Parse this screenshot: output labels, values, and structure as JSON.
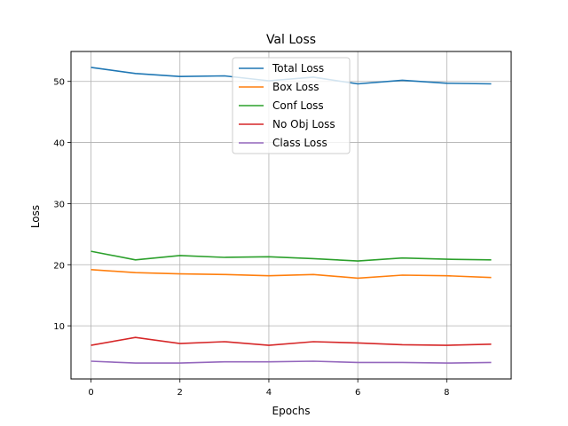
{
  "chart_data": {
    "type": "line",
    "title": "Val Loss",
    "xlabel": "Epochs",
    "ylabel": "Loss",
    "xlim": [
      -0.45,
      9.45
    ],
    "ylim": [
      1.3,
      54.9
    ],
    "xticks": [
      0,
      2,
      4,
      6,
      8
    ],
    "yticks": [
      10,
      20,
      30,
      40,
      50
    ],
    "grid": true,
    "legend_position": "top-center",
    "x": [
      0,
      1,
      2,
      3,
      4,
      5,
      6,
      7,
      8,
      9
    ],
    "series": [
      {
        "name": "Total Loss",
        "color": "#1f77b4",
        "values": [
          52.3,
          51.3,
          50.8,
          50.9,
          50.1,
          50.7,
          49.6,
          50.2,
          49.7,
          49.6
        ]
      },
      {
        "name": "Box Loss",
        "color": "#ff7f0e",
        "values": [
          19.2,
          18.7,
          18.5,
          18.4,
          18.2,
          18.4,
          17.8,
          18.3,
          18.2,
          17.9
        ]
      },
      {
        "name": "Conf Loss",
        "color": "#2ca02c",
        "values": [
          22.2,
          20.8,
          21.5,
          21.2,
          21.3,
          21.0,
          20.6,
          21.1,
          20.9,
          20.8
        ]
      },
      {
        "name": "No Obj Loss",
        "color": "#d62728",
        "values": [
          6.8,
          8.1,
          7.1,
          7.4,
          6.8,
          7.4,
          7.2,
          6.9,
          6.8,
          7.0
        ]
      },
      {
        "name": "Class Loss",
        "color": "#9467bd",
        "values": [
          4.2,
          3.9,
          3.9,
          4.1,
          4.1,
          4.2,
          4.0,
          4.0,
          3.9,
          4.0
        ]
      }
    ]
  }
}
